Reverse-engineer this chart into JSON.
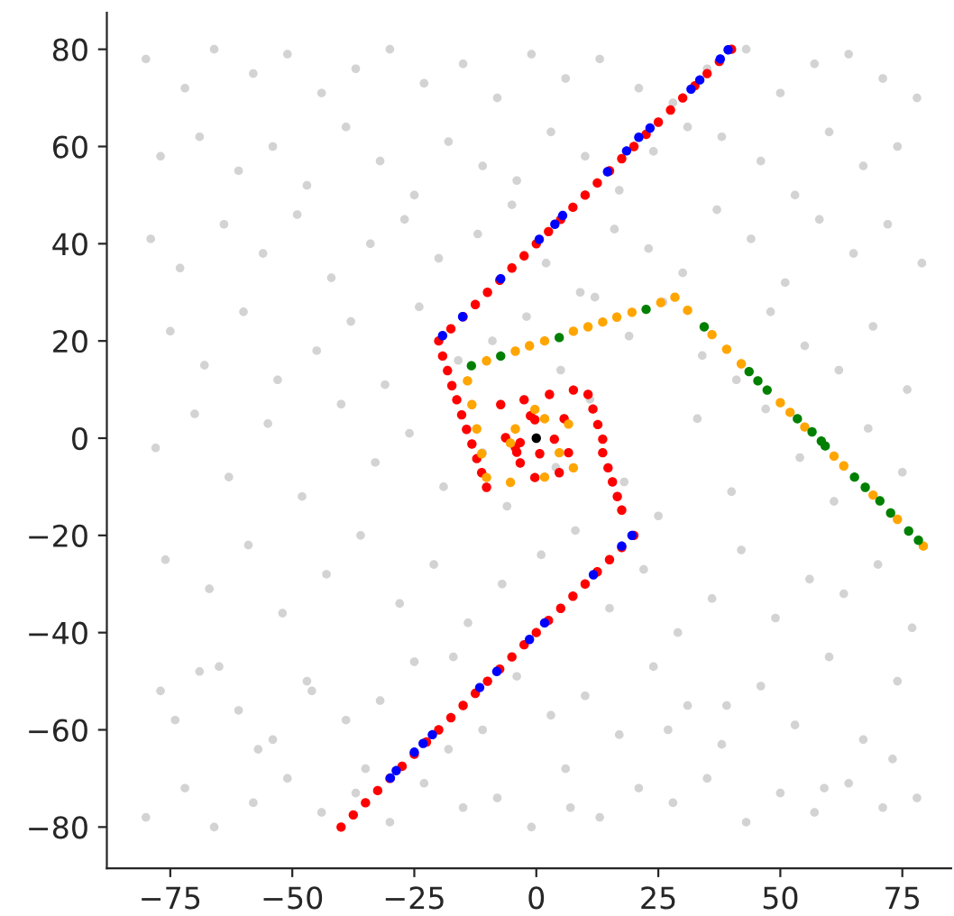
{
  "chart_data": {
    "type": "scatter",
    "marker": "circle",
    "grid": false,
    "legend": false,
    "xlim": [
      -88,
      85
    ],
    "ylim": [
      -88.5,
      87.5
    ],
    "xticks": [
      {
        "value": -75,
        "label": "−75"
      },
      {
        "value": -50,
        "label": "−50"
      },
      {
        "value": -25,
        "label": "−25"
      },
      0,
      25,
      50,
      75
    ],
    "yticks": [
      {
        "value": -80,
        "label": "−80"
      },
      {
        "value": -60,
        "label": "−60"
      },
      {
        "value": -40,
        "label": "−40"
      },
      {
        "value": -20,
        "label": "−20"
      },
      0,
      20,
      40,
      60,
      80
    ],
    "series": [
      {
        "color": "#d3d3d3",
        "x": [
          -80,
          -72,
          -66,
          -58,
          -51,
          -44,
          -37,
          -30,
          -23,
          -15,
          -8,
          -1,
          6,
          13,
          21,
          28,
          35,
          43,
          50,
          57,
          64,
          71,
          78,
          -77,
          -69,
          -61,
          -54,
          -47,
          -39,
          -32,
          -25,
          -18,
          -11,
          -4,
          3,
          10,
          17,
          24,
          31,
          38,
          46,
          53,
          60,
          67,
          74,
          -79,
          -73,
          -64,
          -56,
          -49,
          -42,
          -34,
          -27,
          -20,
          -12,
          -5,
          2,
          9,
          16,
          23,
          30,
          37,
          44,
          51,
          58,
          65,
          72,
          79,
          -75,
          -68,
          -60,
          -53,
          -45,
          -38,
          -31,
          -24,
          -16,
          -9,
          -2,
          5,
          12,
          19,
          26,
          34,
          41,
          48,
          55,
          62,
          69,
          76,
          -78,
          -70,
          -63,
          -55,
          -48,
          -40,
          -33,
          -26,
          -19,
          -11,
          -6,
          4,
          11,
          18,
          25,
          33,
          40,
          47,
          54,
          61,
          68,
          75,
          -76,
          -67,
          -59,
          -52,
          -43,
          -36,
          -28,
          -21,
          -14,
          -7,
          1,
          8,
          15,
          22,
          29,
          36,
          42,
          49,
          56,
          63,
          70,
          77,
          -74,
          -65,
          -57,
          -46,
          -35,
          -17,
          7,
          27,
          39,
          59,
          73,
          -77,
          -69,
          -61,
          -54,
          -47,
          -39,
          -32,
          -25,
          -18,
          -11,
          -4,
          3,
          10,
          17,
          24,
          31,
          38,
          46,
          53,
          60,
          67,
          74,
          -80,
          -72,
          -66,
          -58,
          -51,
          -44,
          -37,
          -30,
          -23,
          -15,
          -8,
          -1,
          6,
          13,
          21,
          28,
          35,
          43,
          50,
          57,
          64,
          71,
          78
        ],
        "values": [
          78,
          72,
          80,
          75,
          79,
          71,
          76,
          80,
          73,
          77,
          70,
          79,
          74,
          78,
          72,
          69,
          76,
          80,
          71,
          77,
          79,
          74,
          70,
          58,
          62,
          55,
          60,
          52,
          64,
          57,
          50,
          61,
          56,
          53,
          63,
          58,
          51,
          59,
          64,
          62,
          57,
          50,
          63,
          56,
          60,
          41,
          35,
          44,
          38,
          46,
          33,
          40,
          45,
          37,
          42,
          48,
          36,
          30,
          43,
          39,
          34,
          47,
          41,
          32,
          45,
          38,
          44,
          36,
          22,
          15,
          26,
          12,
          18,
          24,
          11,
          27,
          16,
          20,
          25,
          14,
          29,
          21,
          28,
          17,
          12,
          26,
          19,
          14,
          23,
          10,
          -2,
          5,
          -8,
          3,
          -12,
          7,
          -5,
          1,
          -10,
          -3,
          -14,
          -6,
          8,
          -9,
          -16,
          4,
          -11,
          6,
          -4,
          -13,
          2,
          -7,
          -25,
          -31,
          -22,
          -36,
          -28,
          -20,
          -34,
          -26,
          -38,
          -30,
          -24,
          -19,
          -35,
          -27,
          -40,
          -33,
          -23,
          -37,
          -29,
          -32,
          -26,
          -39,
          -58,
          -47,
          -64,
          -52,
          -68,
          -45,
          -76,
          -60,
          -55,
          -72,
          -66,
          -52,
          -48,
          -56,
          -62,
          -50,
          -58,
          -54,
          -46,
          -64,
          -60,
          -49,
          -57,
          -53,
          -61,
          -47,
          -55,
          -63,
          -51,
          -59,
          -45,
          -62,
          -50,
          -78,
          -72,
          -80,
          -75,
          -70,
          -77,
          -73,
          -79,
          -71,
          -76,
          -74,
          -80,
          -68,
          -78,
          -72,
          -75,
          -70,
          -79,
          -73,
          -77,
          -71,
          -76,
          -74
        ]
      },
      {
        "color": "#ff0000",
        "x": [
          -40,
          -37.5,
          -35,
          -32.5,
          -30,
          -27.5,
          -25,
          -22.5,
          -20,
          -17.5,
          -15,
          -12.5,
          -10,
          -7.5,
          -5,
          -2.5,
          0,
          2.5,
          5,
          7.5,
          10,
          12.5,
          15,
          17.5,
          20,
          17.5,
          16.6,
          15.6,
          14.7,
          13.6,
          13.6,
          12.6,
          11.6,
          10.6,
          7.6,
          2.7,
          -2.5,
          -7.3,
          -1.2,
          -0.3,
          5.7,
          3.7,
          6.6,
          4.7,
          -0.3,
          0.7,
          -3.3,
          -4,
          -6.3,
          -3.3,
          -4.3,
          -10.2,
          -11.2,
          -12.2,
          -13.2,
          -14.3,
          -15.3,
          -16.3,
          -17.3,
          -18.2,
          -19.2,
          -20,
          -17.5,
          -15,
          -12.5,
          -10,
          -7.5,
          -5,
          -2.5,
          0,
          2.5,
          5,
          7.5,
          10,
          12.5,
          15,
          17.5,
          20,
          22.5,
          25,
          27.5,
          30,
          32.5,
          35,
          37.5,
          40
        ],
        "values": [
          -80,
          -77.5,
          -75,
          -72.5,
          -70,
          -67.5,
          -65,
          -62.5,
          -60,
          -57.5,
          -55,
          -52.5,
          -50,
          -47.5,
          -45,
          -42.5,
          -40,
          -37.5,
          -35,
          -32.5,
          -30,
          -27.5,
          -25,
          -22.5,
          -20,
          -14.8,
          -12,
          -9,
          -6.1,
          -3,
          -0.2,
          2.8,
          6,
          9,
          9.9,
          9,
          7.9,
          6.9,
          4.6,
          3.8,
          4,
          -0.2,
          -3,
          -7.1,
          -8.1,
          -3.2,
          -5.1,
          -2.9,
          0.1,
          -0.9,
          -1.9,
          -10.1,
          -7.1,
          -4.2,
          -1.2,
          1.8,
          4.8,
          7.9,
          10.8,
          13.9,
          16.9,
          20,
          22.5,
          25,
          27.5,
          30,
          32.5,
          35,
          37.5,
          40,
          42.5,
          45,
          47.5,
          50,
          52.5,
          55,
          57.5,
          60,
          62.5,
          65,
          67.5,
          70,
          72.5,
          75,
          77.5,
          80
        ]
      },
      {
        "color": "#0000ff",
        "x": [
          -19.2,
          -15.1,
          -7.3,
          0.6,
          3.8,
          5.4,
          14.6,
          18.5,
          21,
          23.3,
          31.7,
          33.5,
          37.7,
          39.3,
          19.6,
          17.5,
          11.7,
          1.7,
          -1.4,
          -8.1,
          -11.6,
          -21.3,
          -23.2,
          -25,
          -28.7,
          -29.9
        ],
        "values": [
          21.1,
          25,
          32.8,
          40.9,
          44,
          45.8,
          54.8,
          59.1,
          61.9,
          63.8,
          71.8,
          73.7,
          78,
          79.9,
          -20,
          -22.2,
          -28.1,
          -38,
          -41.4,
          -48,
          -51.3,
          -61,
          -62.8,
          -64.6,
          -68.4,
          -69.9
        ]
      },
      {
        "color": "#ffa500",
        "x": [
          -0.3,
          1.7,
          6.6,
          4.7,
          7.6,
          1.7,
          -4.3,
          -5.3,
          -5.3,
          -10.2,
          -11.2,
          -12.2,
          -13.2,
          -14.1,
          -10.2,
          -4.3,
          -1.4,
          1.7,
          7.6,
          10.6,
          13.6,
          16.5,
          19.6,
          25.5,
          28.4,
          31,
          36,
          39,
          42,
          50,
          52,
          55,
          61,
          63,
          69,
          74,
          79.3
        ],
        "values": [
          5.9,
          4,
          2.9,
          -3,
          -6.1,
          -8,
          1.9,
          -1,
          -9.1,
          -8.1,
          -3.2,
          1.9,
          6.9,
          11.8,
          15.9,
          17.9,
          19,
          20,
          22,
          22.9,
          23.9,
          24.9,
          25.9,
          27.9,
          29,
          26.3,
          21.3,
          18.3,
          15.3,
          7.3,
          5.3,
          2.3,
          -3.7,
          -5.7,
          -11.7,
          -16.7,
          -22.2
        ]
      },
      {
        "color": "#008000",
        "x": [
          -13.3,
          -7.3,
          4.7,
          22.5,
          34.4,
          43.6,
          45.4,
          47.3,
          53.5,
          56.5,
          58.4,
          59.2,
          65.2,
          67.4,
          70.4,
          72.6,
          76.3,
          78.3
        ],
        "values": [
          14.9,
          16.9,
          20.7,
          26.5,
          22.9,
          13.7,
          11.8,
          9.9,
          4,
          1.3,
          -0.6,
          -1.6,
          -8,
          -10.1,
          -12.9,
          -15.4,
          -19.1,
          -21
        ]
      },
      {
        "color": "#000000",
        "x": [
          0
        ],
        "values": [
          0
        ]
      }
    ]
  }
}
